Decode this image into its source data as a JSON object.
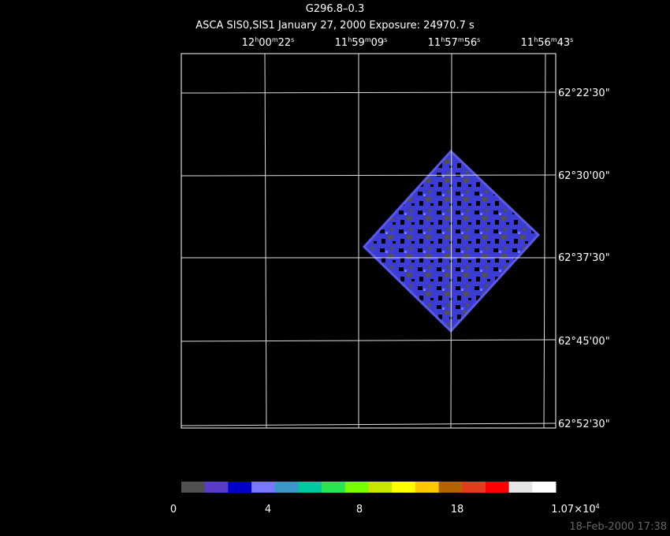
{
  "header": {
    "title": "G296.8–0.3",
    "subtitle": "ASCA SIS0,SIS1 January 27, 2000 Exposure: 24970.7 s"
  },
  "ra_labels": [
    [
      "12",
      "h",
      "00",
      "m",
      "22",
      "s"
    ],
    [
      "11",
      "h",
      "59",
      "m",
      "09",
      "s"
    ],
    [
      "11",
      "h",
      "57",
      "m",
      "56",
      "s"
    ],
    [
      "11",
      "h",
      "56",
      "m",
      "43",
      "s"
    ]
  ],
  "dec_labels": [
    "62°22'30\"",
    "62°30'00\"",
    "62°37'30\"",
    "62°45'00\"",
    "62°52'30\""
  ],
  "colorbar": {
    "colors": [
      "#505050",
      "#5a3cc8",
      "#0000c8",
      "#7878ff",
      "#3c96c8",
      "#00c8a0",
      "#28e650",
      "#78ff00",
      "#c8e600",
      "#ffff00",
      "#ffc800",
      "#b46400",
      "#e63c1e",
      "#ff0000",
      "#e6e6e6",
      "#ffffff"
    ],
    "labels": [
      [
        "0"
      ],
      [
        "4"
      ],
      [
        "8"
      ],
      [
        "18"
      ],
      [
        "1.07×10",
        "4"
      ]
    ]
  },
  "timestamp": "18-Feb-2000 17:38"
}
